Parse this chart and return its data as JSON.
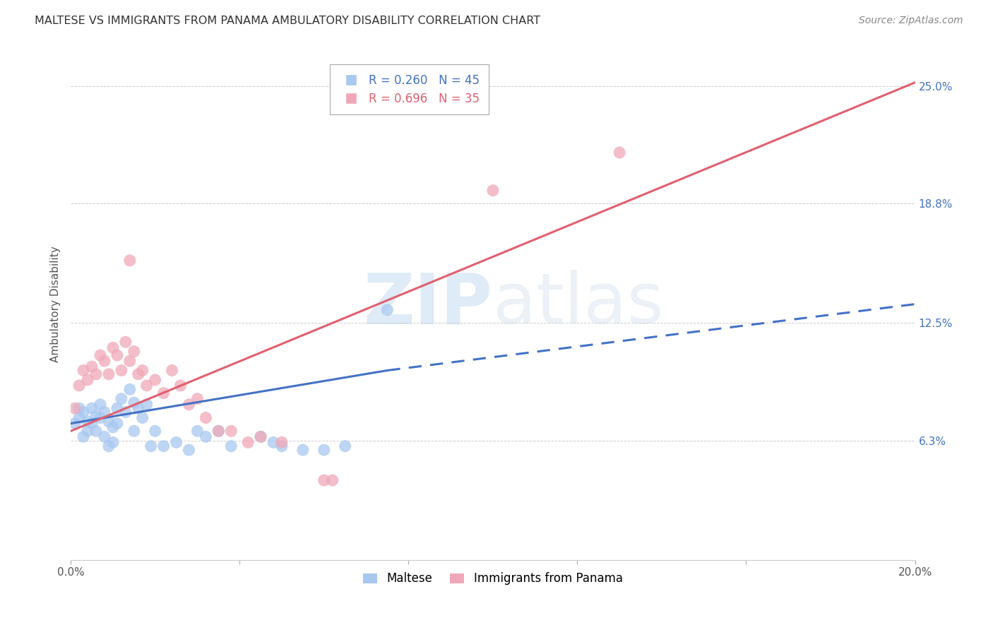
{
  "title": "MALTESE VS IMMIGRANTS FROM PANAMA AMBULATORY DISABILITY CORRELATION CHART",
  "source": "Source: ZipAtlas.com",
  "ylabel": "Ambulatory Disability",
  "xmin": 0.0,
  "xmax": 0.2,
  "ymin": 0.0,
  "ymax": 0.27,
  "yticks": [
    0.063,
    0.125,
    0.188,
    0.25
  ],
  "ytick_labels": [
    "6.3%",
    "12.5%",
    "18.8%",
    "25.0%"
  ],
  "xticks": [
    0.0,
    0.04,
    0.08,
    0.12,
    0.16,
    0.2
  ],
  "xtick_labels": [
    "0.0%",
    "",
    "",
    "",
    "",
    "20.0%"
  ],
  "watermark": "ZIPatlas",
  "maltese_color": "#a8c8f0",
  "panama_color": "#f0a8b8",
  "maltese_line_color": "#4472c4",
  "panama_line_color": "#e06070",
  "maltese_scatter": [
    [
      0.001,
      0.072
    ],
    [
      0.002,
      0.075
    ],
    [
      0.002,
      0.08
    ],
    [
      0.003,
      0.078
    ],
    [
      0.003,
      0.065
    ],
    [
      0.004,
      0.073
    ],
    [
      0.004,
      0.068
    ],
    [
      0.005,
      0.08
    ],
    [
      0.005,
      0.072
    ],
    [
      0.006,
      0.076
    ],
    [
      0.006,
      0.068
    ],
    [
      0.007,
      0.082
    ],
    [
      0.007,
      0.075
    ],
    [
      0.008,
      0.078
    ],
    [
      0.008,
      0.065
    ],
    [
      0.009,
      0.073
    ],
    [
      0.009,
      0.06
    ],
    [
      0.01,
      0.07
    ],
    [
      0.01,
      0.062
    ],
    [
      0.011,
      0.08
    ],
    [
      0.011,
      0.072
    ],
    [
      0.012,
      0.085
    ],
    [
      0.013,
      0.078
    ],
    [
      0.014,
      0.09
    ],
    [
      0.015,
      0.083
    ],
    [
      0.015,
      0.068
    ],
    [
      0.016,
      0.08
    ],
    [
      0.017,
      0.075
    ],
    [
      0.018,
      0.082
    ],
    [
      0.019,
      0.06
    ],
    [
      0.02,
      0.068
    ],
    [
      0.022,
      0.06
    ],
    [
      0.025,
      0.062
    ],
    [
      0.028,
      0.058
    ],
    [
      0.03,
      0.068
    ],
    [
      0.032,
      0.065
    ],
    [
      0.035,
      0.068
    ],
    [
      0.038,
      0.06
    ],
    [
      0.045,
      0.065
    ],
    [
      0.048,
      0.062
    ],
    [
      0.05,
      0.06
    ],
    [
      0.055,
      0.058
    ],
    [
      0.06,
      0.058
    ],
    [
      0.065,
      0.06
    ],
    [
      0.075,
      0.132
    ]
  ],
  "panama_scatter": [
    [
      0.001,
      0.08
    ],
    [
      0.002,
      0.092
    ],
    [
      0.003,
      0.1
    ],
    [
      0.004,
      0.095
    ],
    [
      0.005,
      0.102
    ],
    [
      0.006,
      0.098
    ],
    [
      0.007,
      0.108
    ],
    [
      0.008,
      0.105
    ],
    [
      0.009,
      0.098
    ],
    [
      0.01,
      0.112
    ],
    [
      0.011,
      0.108
    ],
    [
      0.012,
      0.1
    ],
    [
      0.013,
      0.115
    ],
    [
      0.014,
      0.105
    ],
    [
      0.015,
      0.11
    ],
    [
      0.016,
      0.098
    ],
    [
      0.017,
      0.1
    ],
    [
      0.018,
      0.092
    ],
    [
      0.02,
      0.095
    ],
    [
      0.022,
      0.088
    ],
    [
      0.024,
      0.1
    ],
    [
      0.026,
      0.092
    ],
    [
      0.028,
      0.082
    ],
    [
      0.03,
      0.085
    ],
    [
      0.032,
      0.075
    ],
    [
      0.035,
      0.068
    ],
    [
      0.038,
      0.068
    ],
    [
      0.042,
      0.062
    ],
    [
      0.045,
      0.065
    ],
    [
      0.05,
      0.062
    ],
    [
      0.014,
      0.158
    ],
    [
      0.1,
      0.195
    ],
    [
      0.13,
      0.215
    ],
    [
      0.06,
      0.042
    ],
    [
      0.062,
      0.042
    ]
  ],
  "maltese_trendline_solid": [
    [
      0.0,
      0.072
    ],
    [
      0.075,
      0.1
    ]
  ],
  "maltese_trendline_dash": [
    [
      0.075,
      0.1
    ],
    [
      0.2,
      0.135
    ]
  ],
  "panama_trendline": [
    [
      0.0,
      0.068
    ],
    [
      0.2,
      0.252
    ]
  ]
}
